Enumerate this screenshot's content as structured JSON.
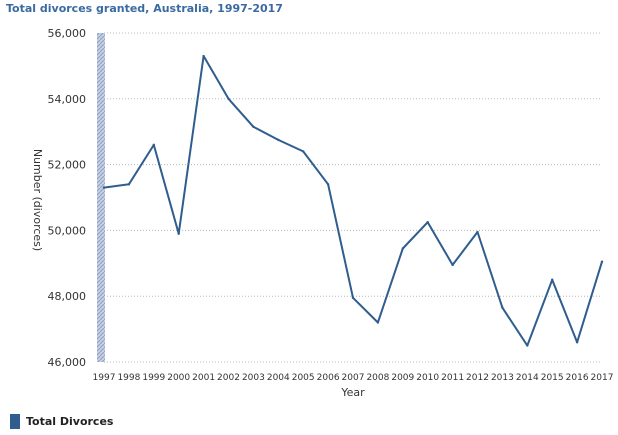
{
  "chart_data": {
    "type": "line",
    "title": "Total divorces granted, Australia, 1997-2017",
    "xlabel": "Year",
    "ylabel": "Number (divorces)",
    "ylim": [
      46000,
      56000
    ],
    "yticks": [
      "46,000",
      "48,000",
      "50,000",
      "52,000",
      "54,000",
      "56,000"
    ],
    "ytick_values": [
      46000,
      48000,
      50000,
      52000,
      54000,
      56000
    ],
    "categories": [
      "1997",
      "1998",
      "1999",
      "2000",
      "2001",
      "2002",
      "2003",
      "2004",
      "2005",
      "2006",
      "2007",
      "2008",
      "2009",
      "2010",
      "2011",
      "2012",
      "2013",
      "2014",
      "2015",
      "2016",
      "2017"
    ],
    "series": [
      {
        "name": "Total Divorces",
        "color": "#2f5d8e",
        "values": [
          51300,
          51400,
          52600,
          49900,
          55300,
          54000,
          53150,
          52750,
          52400,
          51400,
          47950,
          47200,
          49450,
          50250,
          48950,
          49950,
          47650,
          46500,
          48500,
          46600,
          49050
        ]
      }
    ],
    "grid": true,
    "legend_position": "bottom-left"
  }
}
